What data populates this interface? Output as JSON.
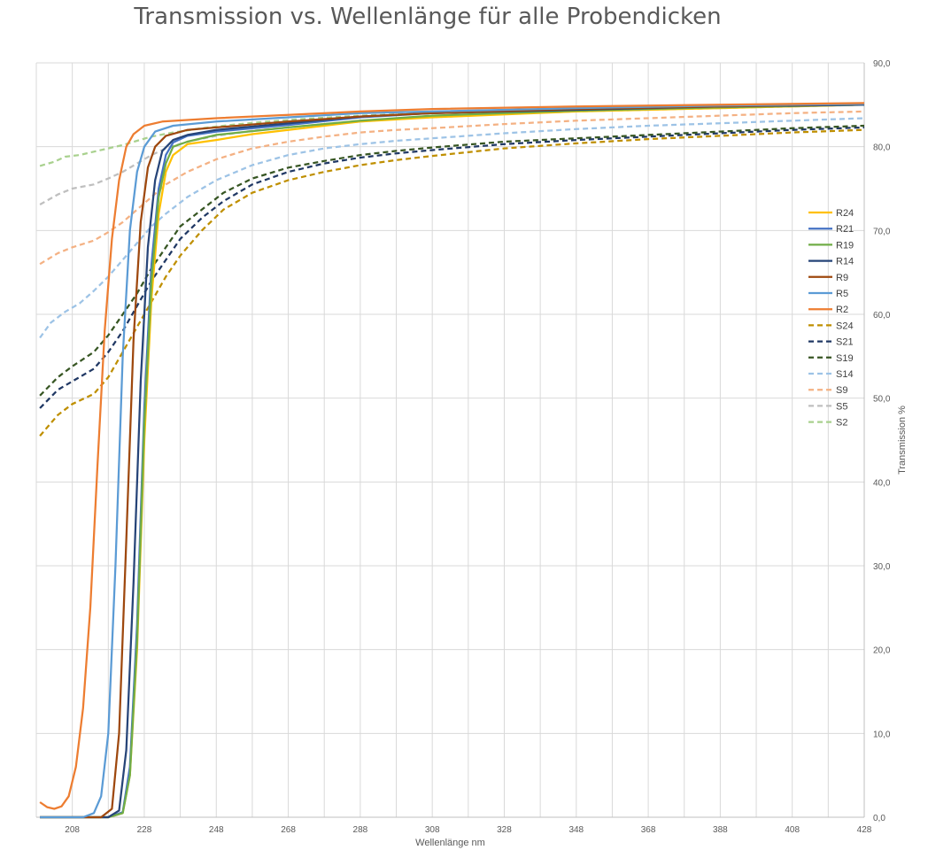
{
  "chart_data": {
    "type": "line",
    "title": "Transmission vs. Wellenlänge für alle Probendicken",
    "xlabel": "Wellenlänge nm",
    "ylabel": "Transmission %",
    "xlim": [
      198,
      428
    ],
    "ylim": [
      0,
      90
    ],
    "x_ticks": [
      "208",
      "228",
      "248",
      "268",
      "288",
      "308",
      "328",
      "348",
      "368",
      "388",
      "408",
      "428"
    ],
    "y_ticks": [
      "0,0",
      "10,0",
      "20,0",
      "30,0",
      "40,0",
      "50,0",
      "60,0",
      "70,0",
      "80,0",
      "90,0"
    ],
    "grid": true,
    "legend_position": "right",
    "series": [
      {
        "name": "R24",
        "color": "#FFC000",
        "dashed": false,
        "points": [
          [
            199,
            0
          ],
          [
            218,
            0
          ],
          [
            222,
            0.5
          ],
          [
            224,
            5
          ],
          [
            226,
            20
          ],
          [
            228,
            45
          ],
          [
            230,
            62
          ],
          [
            232,
            72
          ],
          [
            234,
            77
          ],
          [
            236,
            79
          ],
          [
            240,
            80.3
          ],
          [
            248,
            80.8
          ],
          [
            258,
            81.5
          ],
          [
            268,
            82
          ],
          [
            288,
            83
          ],
          [
            308,
            83.5
          ],
          [
            348,
            84.2
          ],
          [
            388,
            84.6
          ],
          [
            428,
            85
          ]
        ]
      },
      {
        "name": "R21",
        "color": "#4472C4",
        "dashed": false,
        "points": [
          [
            199,
            0
          ],
          [
            218,
            0
          ],
          [
            222,
            0.6
          ],
          [
            224,
            6
          ],
          [
            226,
            23
          ],
          [
            228,
            49
          ],
          [
            230,
            66
          ],
          [
            232,
            75
          ],
          [
            234,
            79
          ],
          [
            236,
            80.5
          ],
          [
            240,
            81.3
          ],
          [
            248,
            81.8
          ],
          [
            268,
            82.6
          ],
          [
            288,
            83.5
          ],
          [
            308,
            84
          ],
          [
            348,
            84.5
          ],
          [
            388,
            84.8
          ],
          [
            428,
            85
          ]
        ]
      },
      {
        "name": "R19",
        "color": "#70AD47",
        "dashed": false,
        "points": [
          [
            199,
            0
          ],
          [
            218,
            0
          ],
          [
            222,
            0.5
          ],
          [
            224,
            5
          ],
          [
            226,
            21
          ],
          [
            228,
            47
          ],
          [
            230,
            64
          ],
          [
            232,
            74
          ],
          [
            234,
            78
          ],
          [
            236,
            80
          ],
          [
            240,
            80.6
          ],
          [
            248,
            81.4
          ],
          [
            268,
            82.3
          ],
          [
            288,
            83.1
          ],
          [
            308,
            83.7
          ],
          [
            348,
            84.3
          ],
          [
            388,
            84.7
          ],
          [
            428,
            85
          ]
        ]
      },
      {
        "name": "R14",
        "color": "#264478",
        "dashed": false,
        "points": [
          [
            199,
            0
          ],
          [
            218,
            0
          ],
          [
            221,
            0.8
          ],
          [
            223,
            8
          ],
          [
            225,
            28
          ],
          [
            227,
            52
          ],
          [
            229,
            68
          ],
          [
            231,
            76
          ],
          [
            233,
            79.5
          ],
          [
            236,
            80.8
          ],
          [
            240,
            81.4
          ],
          [
            248,
            82
          ],
          [
            268,
            82.8
          ],
          [
            288,
            83.6
          ],
          [
            308,
            84
          ],
          [
            348,
            84.4
          ],
          [
            388,
            84.8
          ],
          [
            428,
            85
          ]
        ]
      },
      {
        "name": "R9",
        "color": "#9E480E",
        "dashed": false,
        "points": [
          [
            199,
            0
          ],
          [
            216,
            0
          ],
          [
            219,
            1
          ],
          [
            221,
            10
          ],
          [
            223,
            33
          ],
          [
            225,
            57
          ],
          [
            227,
            71
          ],
          [
            229,
            77.5
          ],
          [
            231,
            80
          ],
          [
            234,
            81.3
          ],
          [
            240,
            82
          ],
          [
            248,
            82.3
          ],
          [
            268,
            83
          ],
          [
            288,
            83.6
          ],
          [
            308,
            84
          ],
          [
            348,
            84.5
          ],
          [
            388,
            84.8
          ],
          [
            428,
            85.1
          ]
        ]
      },
      {
        "name": "R5",
        "color": "#5B9BD5",
        "dashed": false,
        "points": [
          [
            199,
            0
          ],
          [
            211,
            0
          ],
          [
            214,
            0.5
          ],
          [
            216,
            2.5
          ],
          [
            218,
            10
          ],
          [
            220,
            30
          ],
          [
            222,
            55
          ],
          [
            224,
            70
          ],
          [
            226,
            77
          ],
          [
            228,
            80
          ],
          [
            231,
            81.8
          ],
          [
            236,
            82.5
          ],
          [
            248,
            83
          ],
          [
            268,
            83.5
          ],
          [
            288,
            84
          ],
          [
            308,
            84.2
          ],
          [
            348,
            84.6
          ],
          [
            388,
            84.9
          ],
          [
            428,
            85.1
          ]
        ]
      },
      {
        "name": "R2",
        "color": "#ED7D31",
        "dashed": false,
        "points": [
          [
            199,
            1.8
          ],
          [
            201,
            1.2
          ],
          [
            203,
            1
          ],
          [
            205,
            1.3
          ],
          [
            207,
            2.5
          ],
          [
            209,
            6
          ],
          [
            211,
            13
          ],
          [
            213,
            25
          ],
          [
            215,
            42
          ],
          [
            217,
            58
          ],
          [
            219,
            69
          ],
          [
            221,
            76
          ],
          [
            223,
            80
          ],
          [
            225,
            81.5
          ],
          [
            228,
            82.5
          ],
          [
            233,
            83
          ],
          [
            248,
            83.4
          ],
          [
            268,
            83.8
          ],
          [
            288,
            84.2
          ],
          [
            308,
            84.5
          ],
          [
            348,
            84.8
          ],
          [
            388,
            85
          ],
          [
            428,
            85.2
          ]
        ]
      },
      {
        "name": "S24",
        "color": "#BF8F00",
        "dashed": true,
        "points": [
          [
            199,
            45.5
          ],
          [
            204,
            48
          ],
          [
            208,
            49.3
          ],
          [
            214,
            50.5
          ],
          [
            218,
            52.5
          ],
          [
            222,
            55.5
          ],
          [
            226,
            58.5
          ],
          [
            230,
            61.5
          ],
          [
            234,
            64.5
          ],
          [
            238,
            67
          ],
          [
            244,
            70
          ],
          [
            250,
            72.5
          ],
          [
            258,
            74.5
          ],
          [
            268,
            76
          ],
          [
            278,
            77
          ],
          [
            288,
            77.8
          ],
          [
            298,
            78.4
          ],
          [
            308,
            78.9
          ],
          [
            328,
            79.8
          ],
          [
            348,
            80.4
          ],
          [
            368,
            80.9
          ],
          [
            388,
            81.3
          ],
          [
            408,
            81.7
          ],
          [
            428,
            82
          ]
        ]
      },
      {
        "name": "S21",
        "color": "#203864",
        "dashed": true,
        "points": [
          [
            199,
            48.8
          ],
          [
            204,
            51
          ],
          [
            208,
            52
          ],
          [
            214,
            53.5
          ],
          [
            218,
            55.5
          ],
          [
            222,
            58
          ],
          [
            226,
            61
          ],
          [
            230,
            64
          ],
          [
            234,
            66.5
          ],
          [
            238,
            69
          ],
          [
            244,
            71.5
          ],
          [
            250,
            73.5
          ],
          [
            258,
            75.5
          ],
          [
            268,
            77
          ],
          [
            278,
            78
          ],
          [
            288,
            78.7
          ],
          [
            298,
            79.2
          ],
          [
            308,
            79.6
          ],
          [
            328,
            80.3
          ],
          [
            348,
            80.8
          ],
          [
            368,
            81.2
          ],
          [
            388,
            81.6
          ],
          [
            408,
            82
          ],
          [
            428,
            82.3
          ]
        ]
      },
      {
        "name": "S19",
        "color": "#375623",
        "dashed": true,
        "points": [
          [
            199,
            50.3
          ],
          [
            204,
            52.5
          ],
          [
            208,
            53.8
          ],
          [
            214,
            55.5
          ],
          [
            218,
            57.5
          ],
          [
            222,
            60
          ],
          [
            226,
            62.5
          ],
          [
            230,
            65.5
          ],
          [
            234,
            68
          ],
          [
            238,
            70.5
          ],
          [
            244,
            72.5
          ],
          [
            250,
            74.5
          ],
          [
            258,
            76.2
          ],
          [
            268,
            77.5
          ],
          [
            278,
            78.3
          ],
          [
            288,
            79
          ],
          [
            298,
            79.5
          ],
          [
            308,
            79.9
          ],
          [
            328,
            80.6
          ],
          [
            348,
            81
          ],
          [
            368,
            81.4
          ],
          [
            388,
            81.8
          ],
          [
            408,
            82.2
          ],
          [
            428,
            82.5
          ]
        ]
      },
      {
        "name": "S14",
        "color": "#9DC3E6",
        "dashed": true,
        "points": [
          [
            199,
            57.2
          ],
          [
            202,
            59
          ],
          [
            206,
            60.3
          ],
          [
            210,
            61.3
          ],
          [
            214,
            62.8
          ],
          [
            218,
            64.5
          ],
          [
            222,
            66.5
          ],
          [
            226,
            68.5
          ],
          [
            230,
            70.5
          ],
          [
            234,
            72
          ],
          [
            240,
            74
          ],
          [
            248,
            76
          ],
          [
            258,
            77.8
          ],
          [
            268,
            79
          ],
          [
            278,
            79.8
          ],
          [
            288,
            80.3
          ],
          [
            298,
            80.7
          ],
          [
            308,
            81
          ],
          [
            328,
            81.6
          ],
          [
            348,
            82.1
          ],
          [
            368,
            82.5
          ],
          [
            388,
            82.8
          ],
          [
            408,
            83.1
          ],
          [
            428,
            83.4
          ]
        ]
      },
      {
        "name": "S9",
        "color": "#F4B183",
        "dashed": true,
        "points": [
          [
            199,
            66
          ],
          [
            204,
            67.3
          ],
          [
            208,
            68
          ],
          [
            214,
            68.8
          ],
          [
            218,
            69.8
          ],
          [
            222,
            71
          ],
          [
            226,
            72.5
          ],
          [
            230,
            74
          ],
          [
            234,
            75.5
          ],
          [
            240,
            77
          ],
          [
            248,
            78.5
          ],
          [
            258,
            79.8
          ],
          [
            268,
            80.6
          ],
          [
            278,
            81.2
          ],
          [
            288,
            81.7
          ],
          [
            298,
            82
          ],
          [
            308,
            82.2
          ],
          [
            328,
            82.7
          ],
          [
            348,
            83.1
          ],
          [
            368,
            83.4
          ],
          [
            388,
            83.7
          ],
          [
            408,
            84
          ],
          [
            428,
            84.2
          ]
        ]
      },
      {
        "name": "S5",
        "color": "#BFBFBF",
        "dashed": true,
        "points": [
          [
            199,
            73.1
          ],
          [
            204,
            74.3
          ],
          [
            208,
            75
          ],
          [
            214,
            75.5
          ],
          [
            218,
            76.2
          ],
          [
            222,
            77
          ],
          [
            226,
            78
          ],
          [
            230,
            79
          ],
          [
            234,
            79.8
          ],
          [
            240,
            80.6
          ],
          [
            248,
            81.3
          ],
          [
            258,
            81.9
          ],
          [
            268,
            82.3
          ],
          [
            278,
            82.7
          ],
          [
            288,
            83
          ],
          [
            298,
            83.3
          ],
          [
            308,
            83.5
          ],
          [
            328,
            83.9
          ],
          [
            348,
            84.2
          ],
          [
            368,
            84.4
          ],
          [
            388,
            84.6
          ],
          [
            408,
            84.8
          ],
          [
            428,
            85
          ]
        ]
      },
      {
        "name": "S2",
        "color": "#A9D18E",
        "dashed": true,
        "points": [
          [
            199,
            77.7
          ],
          [
            203,
            78.2
          ],
          [
            206,
            78.8
          ],
          [
            210,
            79
          ],
          [
            214,
            79.4
          ],
          [
            218,
            79.8
          ],
          [
            222,
            80.2
          ],
          [
            226,
            80.7
          ],
          [
            230,
            81.2
          ],
          [
            236,
            81.7
          ],
          [
            244,
            82.2
          ],
          [
            252,
            82.6
          ],
          [
            262,
            83
          ],
          [
            272,
            83.3
          ],
          [
            288,
            83.7
          ],
          [
            308,
            84
          ],
          [
            328,
            84.3
          ],
          [
            348,
            84.5
          ],
          [
            368,
            84.7
          ],
          [
            388,
            84.9
          ],
          [
            408,
            85
          ],
          [
            428,
            85.1
          ]
        ]
      }
    ]
  }
}
